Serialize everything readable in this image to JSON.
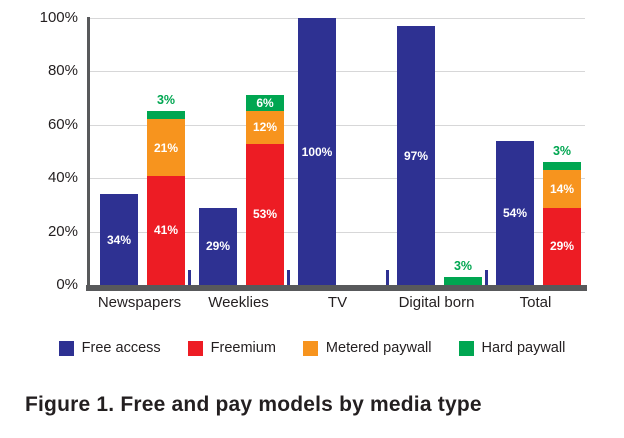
{
  "figure": {
    "caption": "Figure 1. Free and pay models by media type"
  },
  "colors": {
    "free_access": "#2E3192",
    "freemium": "#ED1C24",
    "metered_paywall": "#F7941E",
    "hard_paywall": "#00A651",
    "axis": "#58595B",
    "gridline": "#D7D7D8",
    "text": "#231F20",
    "bar_label": "#FFFFFF"
  },
  "chart_data": {
    "type": "bar",
    "title": "",
    "xlabel": "",
    "ylabel": "",
    "ylim": [
      0,
      100
    ],
    "y_ticks": [
      "100%",
      "80%",
      "60%",
      "40%",
      "20%",
      "0%"
    ],
    "grid": true,
    "legend_position": "bottom",
    "bar_arrangement": "per category: one Free access bar plus one stacked bar of Freemium + Metered paywall + Hard paywall",
    "categories": [
      "Newspapers",
      "Weeklies",
      "TV",
      "Digital born",
      "Total"
    ],
    "series": [
      {
        "name": "Free access",
        "color": "#2E3192",
        "values": [
          34,
          29,
          100,
          97,
          54
        ]
      },
      {
        "name": "Freemium",
        "color": "#ED1C24",
        "values": [
          41,
          53,
          0,
          0,
          29
        ]
      },
      {
        "name": "Metered paywall",
        "color": "#F7941E",
        "values": [
          21,
          12,
          0,
          0,
          14
        ]
      },
      {
        "name": "Hard paywall",
        "color": "#00A651",
        "values": [
          3,
          6,
          0,
          3,
          3
        ]
      }
    ],
    "stack_totals": [
      65,
      71,
      0,
      3,
      46
    ],
    "value_label_format": "{value}%"
  },
  "legend": {
    "items": [
      {
        "label": "Free access",
        "color": "#2E3192"
      },
      {
        "label": "Freemium",
        "color": "#ED1C24"
      },
      {
        "label": "Metered paywall",
        "color": "#F7941E"
      },
      {
        "label": "Hard paywall",
        "color": "#00A651"
      }
    ]
  }
}
